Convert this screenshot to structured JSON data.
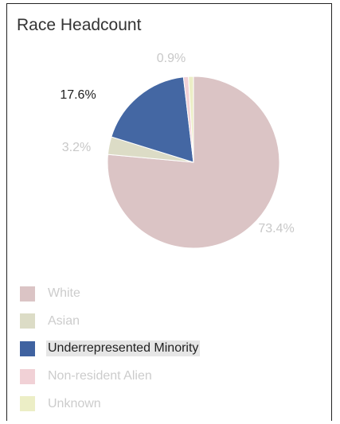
{
  "chart_data": {
    "type": "pie",
    "title": "Race Headcount",
    "slices": [
      {
        "label": "White",
        "value": 73.4,
        "data_label": "73.4%",
        "color": "#dbc4c5",
        "legend_color": "#dbc4c5",
        "label_color": "#c8c8c8",
        "highlighted": false
      },
      {
        "label": "Asian",
        "value": 3.2,
        "data_label": "3.2%",
        "color": "#dcdcc6",
        "legend_color": "#dcdcc6",
        "label_color": "#c8c8c8",
        "highlighted": false
      },
      {
        "label": "Underrepresented Minority",
        "value": 17.6,
        "data_label": "17.6%",
        "color": "#4467a3",
        "legend_color": "#3f62a0",
        "label_color": "#222222",
        "highlighted": true
      },
      {
        "label": "Non-resident Alien",
        "value": 0.9,
        "data_label": "0.9%",
        "color": "#f1d1d6",
        "legend_color": "#f1d1d6",
        "label_color": "#c8c8c8",
        "highlighted": false
      },
      {
        "label": "Unknown",
        "value": 0.9,
        "data_label": "",
        "color": "#eceec6",
        "legend_color": "#eceec6",
        "label_color": "#c8c8c8",
        "highlighted": false
      }
    ],
    "start_angle_deg": 0,
    "direction": "clockwise",
    "legend_position": "bottom-left"
  }
}
